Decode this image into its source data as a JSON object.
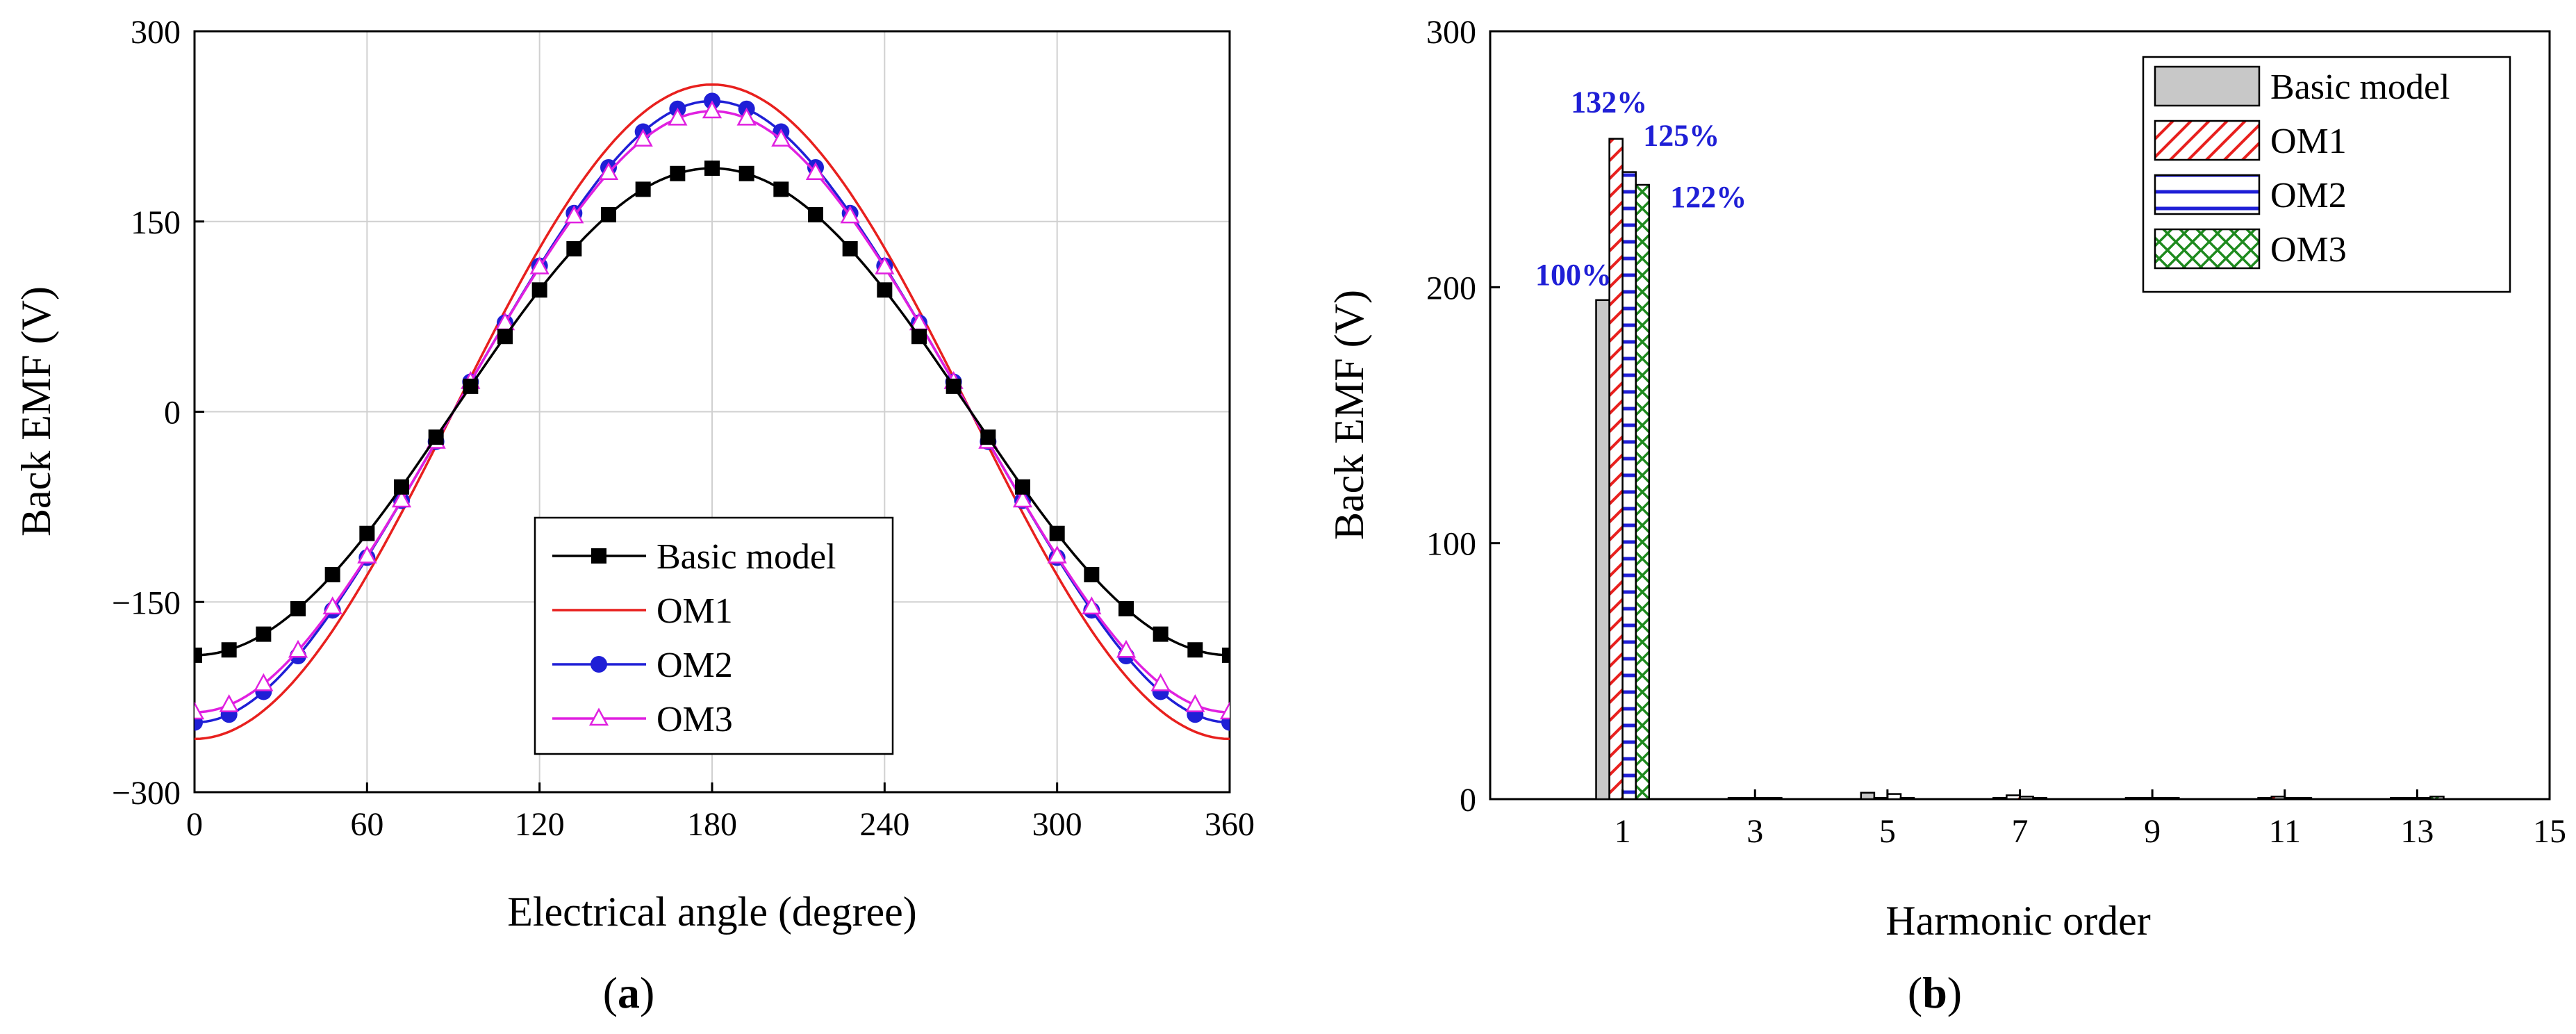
{
  "chart_data": [
    {
      "type": "line",
      "panel_label": "a",
      "xlabel": "Electrical angle (degree)",
      "ylabel": "Back EMF (V)",
      "xlim": [
        0,
        360
      ],
      "ylim": [
        -300,
        300
      ],
      "xticks": [
        0,
        60,
        120,
        180,
        240,
        300,
        360
      ],
      "yticks": [
        300,
        150,
        0,
        -150,
        -300
      ],
      "ytick_labels": [
        "300",
        "150",
        "0",
        "−150",
        "−300"
      ],
      "grid": true,
      "legend_position": "bottom-center",
      "series": [
        {
          "name": "Basic model",
          "amplitude": 192,
          "phase_deg": 90,
          "third_harmonic": 0,
          "marker": "square",
          "color": "#000000",
          "marker_step_deg": 12
        },
        {
          "name": "OM1",
          "amplitude": 258,
          "phase_deg": 90,
          "third_harmonic": 0,
          "marker": "none",
          "color": "#e8201e",
          "marker_step_deg": 12
        },
        {
          "name": "OM2",
          "amplitude": 240,
          "phase_deg": 90,
          "third_harmonic": -5,
          "marker": "circle",
          "color": "#1f1fd6",
          "marker_step_deg": 12
        },
        {
          "name": "OM3",
          "amplitude": 234,
          "phase_deg": 90,
          "third_harmonic": -3,
          "marker": "triangle",
          "color": "#e020e0",
          "marker_step_deg": 12
        }
      ]
    },
    {
      "type": "bar",
      "panel_label": "b",
      "xlabel": "Harmonic order",
      "ylabel": "Back EMF (V)",
      "xlim": [
        -1,
        15
      ],
      "ylim": [
        0,
        300
      ],
      "xticks": [
        1,
        3,
        5,
        7,
        9,
        11,
        13,
        15
      ],
      "yticks": [
        0,
        100,
        200,
        300
      ],
      "grid": false,
      "legend_position": "top-right",
      "harmonics": [
        1,
        3,
        5,
        7,
        9,
        11,
        13
      ],
      "series": [
        {
          "name": "Basic model",
          "pattern": "solid-gray",
          "values": [
            195,
            0.5,
            2.5,
            0.5,
            0.5,
            0.5,
            0.5
          ]
        },
        {
          "name": "OM1",
          "pattern": "diagonal-red",
          "values": [
            258,
            0.5,
            0.5,
            1.5,
            0.5,
            1,
            0.5
          ]
        },
        {
          "name": "OM2",
          "pattern": "horizontal-blue",
          "values": [
            245,
            0.5,
            2,
            1,
            0.5,
            0.5,
            0.5
          ]
        },
        {
          "name": "OM3",
          "pattern": "crosshatch-green",
          "values": [
            240,
            0.5,
            0.5,
            0.5,
            0.5,
            0.5,
            1
          ]
        }
      ],
      "annotations": [
        "100%",
        "132%",
        "125%",
        "122%"
      ]
    }
  ]
}
